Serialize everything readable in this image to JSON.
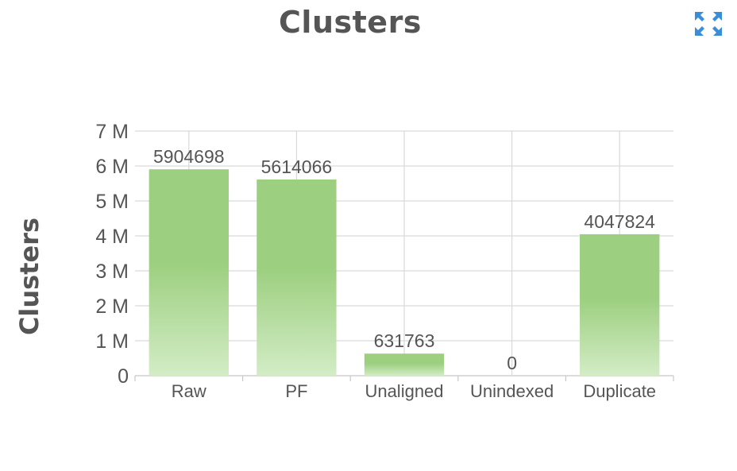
{
  "page": {
    "title": "Clusters"
  },
  "icons": {
    "expand": "expand-arrows-icon"
  },
  "colors": {
    "bar_top": "#9ccf7f",
    "bar_bottom": "#d3ecc6",
    "text": "#555555",
    "expand_icon": "#3a8ed8"
  },
  "chart_data": {
    "type": "bar",
    "title": "Clusters",
    "ylabel": "Clusters",
    "xlabel": "",
    "categories": [
      "Raw",
      "PF",
      "Unaligned",
      "Unindexed",
      "Duplicate"
    ],
    "values": [
      5904698,
      5614066,
      631763,
      0,
      4047824
    ],
    "value_labels": [
      "5904698",
      "5614066",
      "631763",
      "0",
      "4047824"
    ],
    "ylim": [
      0,
      7000000
    ],
    "yticks": [
      0,
      1000000,
      2000000,
      3000000,
      4000000,
      5000000,
      6000000,
      7000000
    ],
    "ytick_labels": [
      "0",
      "1 M",
      "2 M",
      "3 M",
      "4 M",
      "5 M",
      "6 M",
      "7 M"
    ],
    "grid": true,
    "legend": "none"
  }
}
